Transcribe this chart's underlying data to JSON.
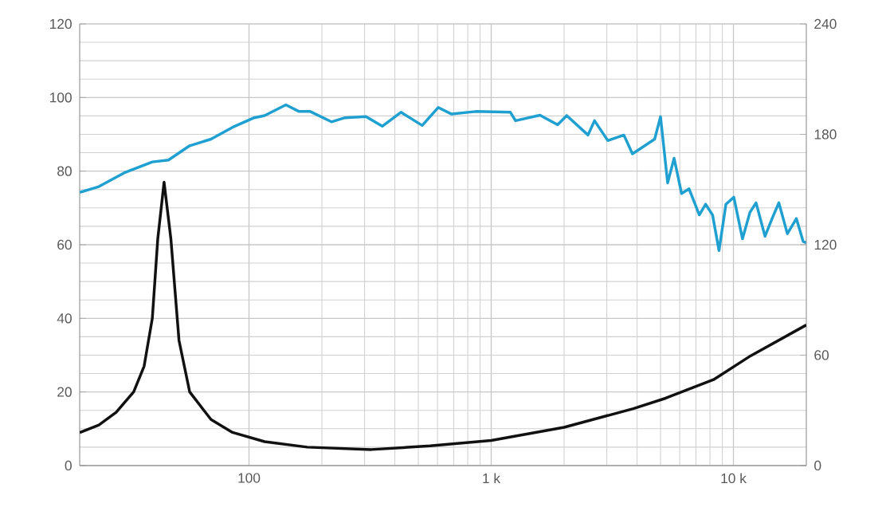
{
  "chart_data": {
    "type": "line",
    "log": "x",
    "grid": true,
    "xlim": [
      20,
      20000
    ],
    "xticks": [
      100,
      {
        "value": 1000,
        "label": "1 k"
      },
      {
        "value": 10000,
        "label": "10 k"
      }
    ],
    "ylim": [
      0,
      120
    ],
    "yticks": [
      0,
      20,
      40,
      60,
      80,
      100,
      120
    ],
    "y2lim": [
      0,
      240
    ],
    "y2ticks": [
      0,
      60,
      120,
      180,
      240
    ],
    "series": [
      {
        "color": "#1fa0d0",
        "x": [
          20,
          24,
          30.9,
          39.9,
          46.5,
          56.9,
          69.7,
          85.5,
          105,
          116,
          142,
          161,
          179,
          219,
          249,
          304,
          355,
          424,
          519,
          604,
          686,
          862,
          1200,
          1260,
          1590,
          1880,
          2050,
          2510,
          2670,
          3030,
          3530,
          3830,
          4730,
          5000,
          5350,
          5690,
          6110,
          6560,
          7230,
          7680,
          8200,
          8720,
          9310,
          10040,
          10900,
          11700,
          12400,
          13500,
          14500,
          15400,
          16700,
          18200,
          19400,
          20000
        ],
        "values": [
          74.2,
          75.8,
          79.7,
          82.5,
          83,
          86.9,
          88.7,
          91.9,
          94.5,
          95.1,
          98,
          96.2,
          96.2,
          93.4,
          94.5,
          94.8,
          92.2,
          96,
          92.4,
          97.3,
          95.5,
          96.2,
          96,
          93.7,
          95.2,
          92.6,
          95.1,
          89.8,
          93.7,
          88.3,
          89.8,
          84.7,
          88.7,
          94.8,
          76.8,
          83.5,
          73.9,
          75.2,
          68.1,
          71,
          68.1,
          58.4,
          71,
          72.9,
          61.6,
          68.8,
          71.4,
          62.3,
          67.4,
          71.4,
          63,
          67.1,
          60.9,
          60.5
        ]
      },
      {
        "color": "#111111",
        "axis": "y2",
        "x": [
          20,
          24,
          28.3,
          33.4,
          36.9,
          39.9,
          42,
          44.6,
          47.6,
          51.4,
          56.9,
          69.7,
          85.5,
          116,
          174,
          320,
          560,
          1000,
          2000,
          3860,
          5250,
          8280,
          11800,
          20000
        ],
        "values": [
          17.9,
          22,
          29,
          40,
          54,
          80,
          123,
          154,
          123,
          68,
          40,
          25,
          18,
          13,
          10,
          8.7,
          10.7,
          13.6,
          20.8,
          30.9,
          36.6,
          46.7,
          59.7,
          76.4
        ]
      }
    ]
  }
}
